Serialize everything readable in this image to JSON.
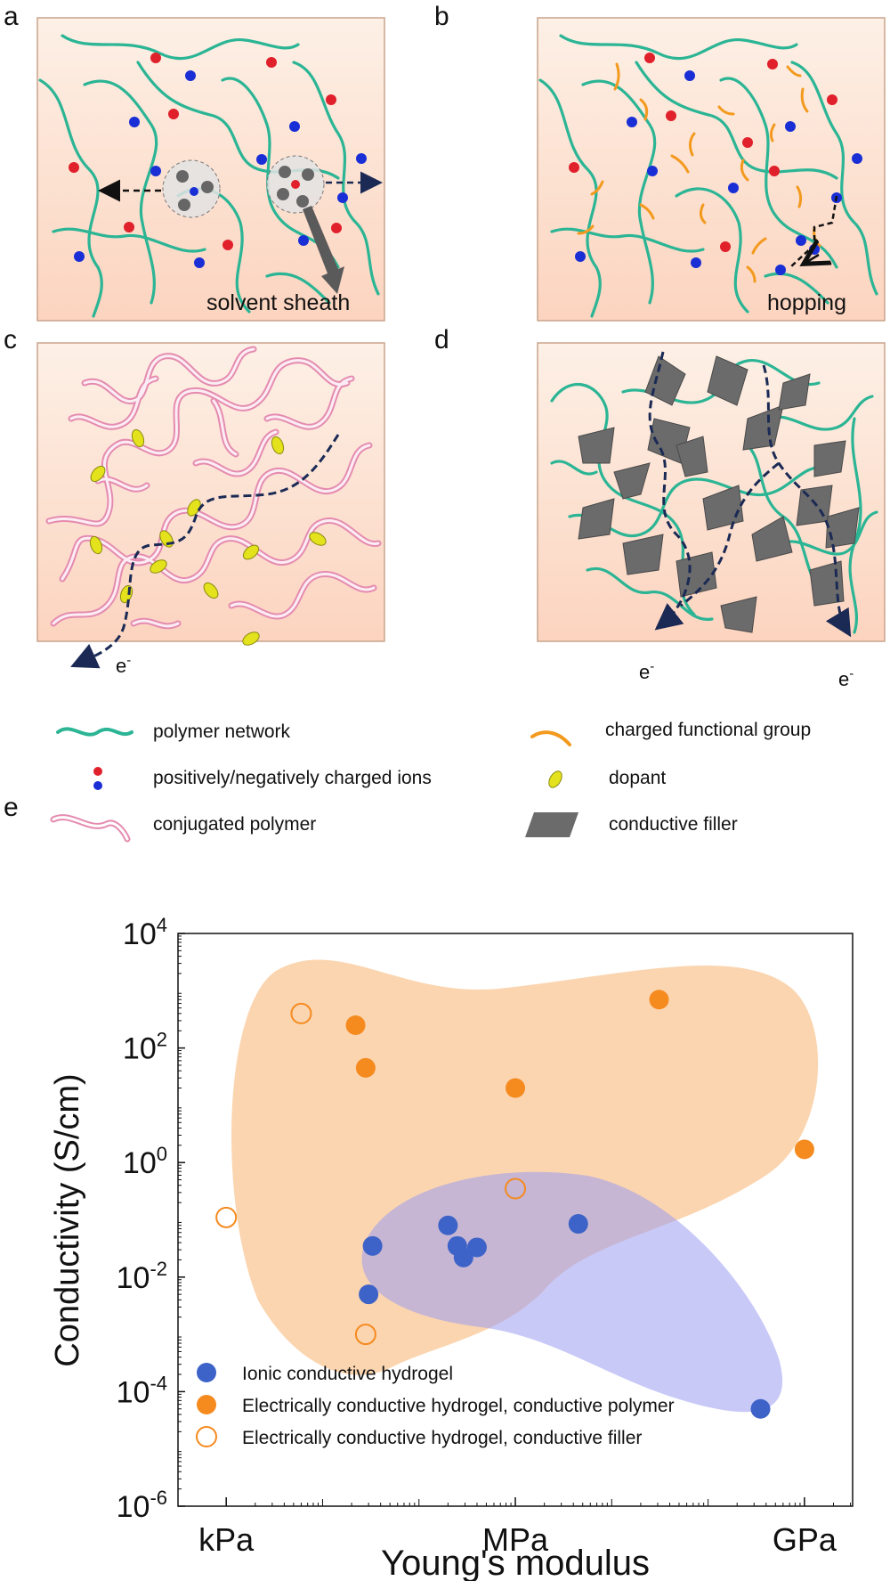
{
  "panels": {
    "a": {
      "label": "a",
      "caption": "solvent sheath"
    },
    "b": {
      "label": "b",
      "caption": "hopping"
    },
    "c": {
      "label": "c",
      "electron": "e",
      "electron_sup": "-"
    },
    "d": {
      "label": "d",
      "electron": "e",
      "electron_sup": "-"
    },
    "e": {
      "label": "e"
    }
  },
  "legend_top": {
    "polymer_network": "polymer network",
    "ions": "positively/negatively charged ions",
    "conjugated_polymer": "conjugated polymer",
    "charged_group": "charged functional group",
    "dopant": "dopant",
    "conductive_filler": "conductive filler"
  },
  "colors": {
    "polymer": "#2bb595",
    "conjugated": "#e58bb0",
    "positive_ion": "#e0202a",
    "negative_ion": "#1a2ed6",
    "charged_group": "#f39a1e",
    "dopant": "#e3e21c",
    "filler": "#6b6b6b",
    "panel_bg": "#fde3d2",
    "ionic": "#3d63c8",
    "electric": "#f58a1f"
  },
  "chart_data": {
    "type": "scatter",
    "xlabel": "Young's modulus",
    "ylabel": "Conductivity (S/cm)",
    "x_scale": "log",
    "y_scale": "log",
    "x_ticks": [
      {
        "label": "kPa",
        "value": 1000
      },
      {
        "label": "MPa",
        "value": 1000000
      },
      {
        "label": "GPa",
        "value": 1000000000
      }
    ],
    "y_ticks": [
      {
        "base": "10",
        "exp": "4",
        "value": 10000
      },
      {
        "base": "10",
        "exp": "2",
        "value": 100
      },
      {
        "base": "10",
        "exp": "0",
        "value": 1
      },
      {
        "base": "10",
        "exp": "-2",
        "value": 0.01
      },
      {
        "base": "10",
        "exp": "-4",
        "value": 0.0001
      },
      {
        "base": "10",
        "exp": "-6",
        "value": 1e-06
      }
    ],
    "xlim": [
      316,
      3160000000
    ],
    "ylim": [
      1e-06,
      10000
    ],
    "series": [
      {
        "name": "Ionic conductive hydrogel",
        "style": "filled",
        "color": "#3d63c8",
        "points": [
          [
            33000,
            0.035
          ],
          [
            30000,
            0.005
          ],
          [
            200000,
            0.08
          ],
          [
            250000,
            0.035
          ],
          [
            290000,
            0.022
          ],
          [
            400000,
            0.033
          ],
          [
            4500000,
            0.085
          ],
          [
            350000000,
            5e-05
          ]
        ]
      },
      {
        "name": "Electrically conductive hydrogel, conductive polymer",
        "style": "filled",
        "color": "#f58a1f",
        "points": [
          [
            22000,
            250
          ],
          [
            28000,
            45
          ],
          [
            1000000,
            20
          ],
          [
            31000000,
            700
          ],
          [
            1000000000,
            1.7
          ]
        ]
      },
      {
        "name": "Electrically conductive hydrogel, conductive filler",
        "style": "hollow",
        "color": "#f58a1f",
        "points": [
          [
            6000,
            400
          ],
          [
            1000,
            0.11
          ],
          [
            28000,
            0.001
          ],
          [
            1000000,
            0.35
          ]
        ]
      }
    ]
  }
}
